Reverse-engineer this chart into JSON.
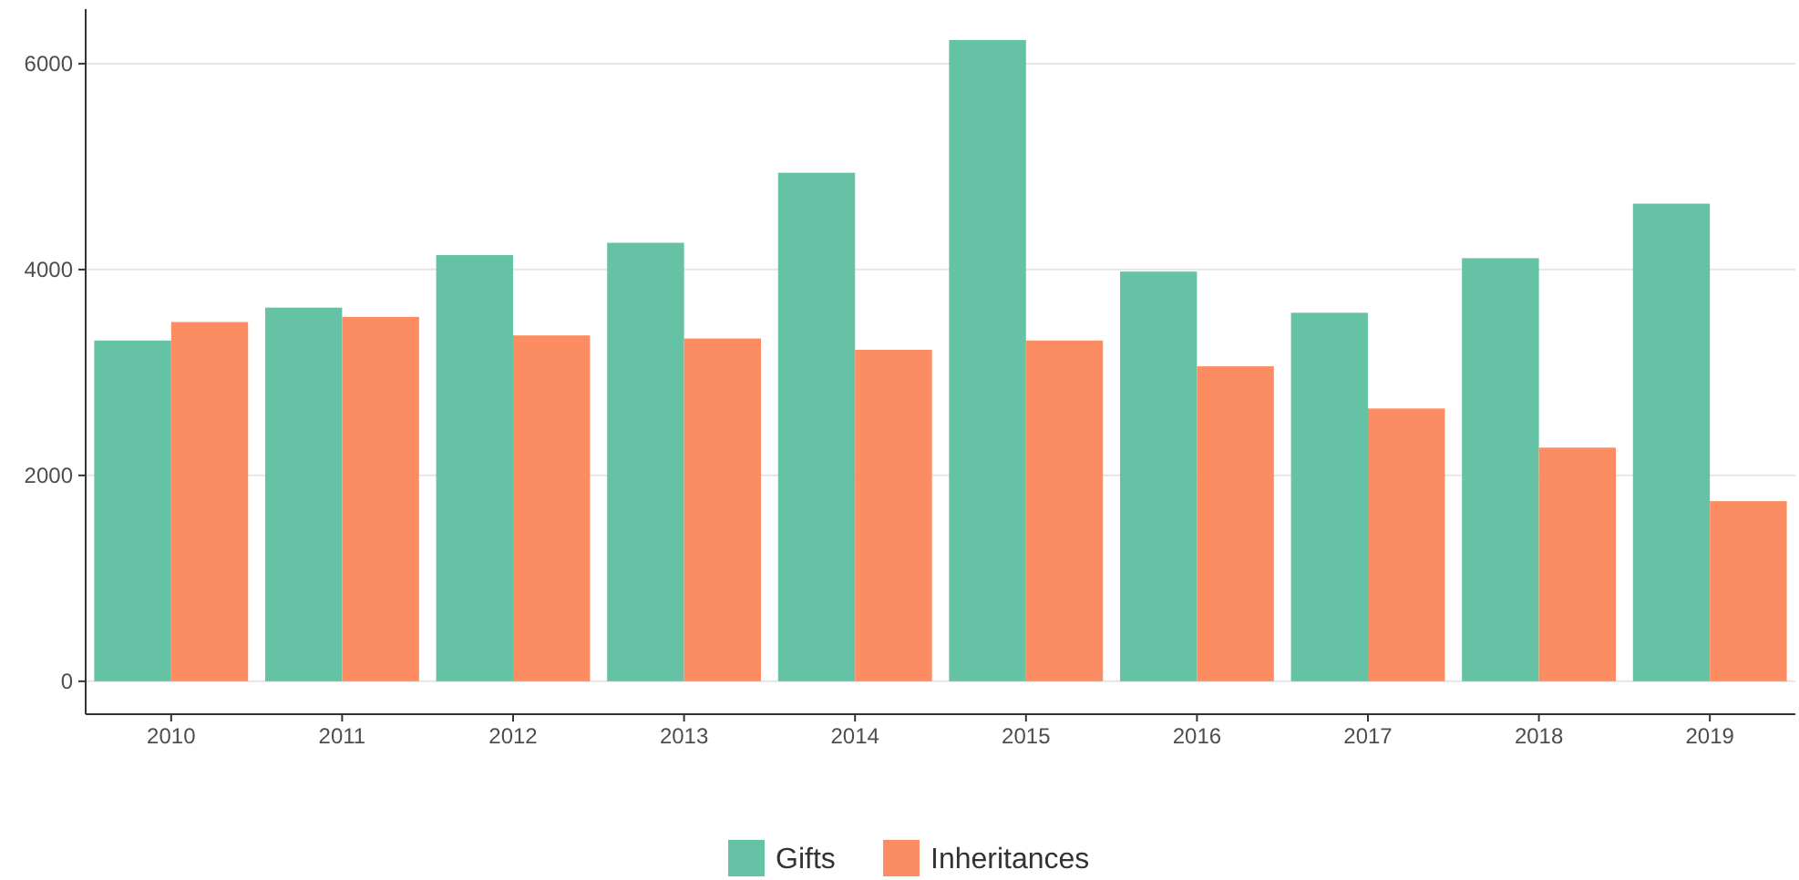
{
  "chart_data": {
    "type": "bar",
    "categories": [
      "2010",
      "2011",
      "2012",
      "2013",
      "2014",
      "2015",
      "2016",
      "2017",
      "2018",
      "2019"
    ],
    "series": [
      {
        "name": "Gifts",
        "color": "#66c2a5",
        "values": [
          3310,
          3630,
          4140,
          4260,
          4940,
          6230,
          3980,
          3580,
          4110,
          4640
        ]
      },
      {
        "name": "Inheritances",
        "color": "#fc8d62",
        "values": [
          3490,
          3540,
          3360,
          3330,
          3220,
          3310,
          3060,
          2650,
          2270,
          1750
        ]
      }
    ],
    "ylim": [
      -320,
      6530
    ],
    "yticks": [
      0,
      2000,
      4000,
      6000
    ],
    "grid": "y",
    "legend": "bottom"
  }
}
